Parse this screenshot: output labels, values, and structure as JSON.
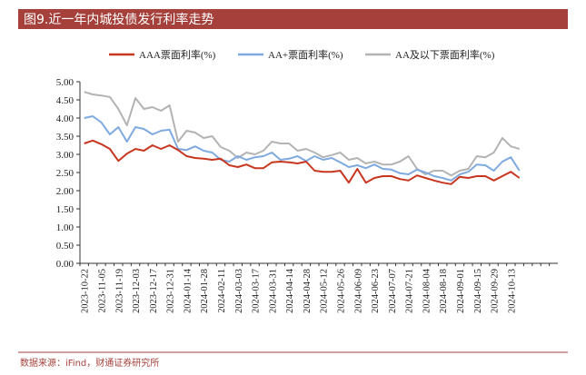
{
  "chart_data": {
    "type": "line",
    "title": "图9.近一年内城投债发行利率走势",
    "source": "数据来源：iFind，财通证券研究所",
    "categories": [
      "2023-10-22",
      null,
      "2023-11-05",
      null,
      "2023-11-19",
      null,
      "2023-12-03",
      null,
      "2023-12-17",
      null,
      "2023-12-31",
      null,
      "2024-01-14",
      null,
      "2024-01-28",
      null,
      "2024-02-11",
      null,
      "2024-03-03",
      null,
      "2024-03-17",
      null,
      "2024-03-31",
      null,
      "2024-04-14",
      null,
      "2024-04-28",
      null,
      "2024-05-12",
      null,
      "2024-05-26",
      null,
      "2024-06-09",
      null,
      "2024-06-23",
      null,
      "2024-07-07",
      null,
      "2024-07-21",
      null,
      "2024-08-04",
      null,
      "2024-08-18",
      null,
      "2024-09-01",
      null,
      "2024-09-15",
      null,
      "2024-09-29",
      null,
      "2024-10-13",
      null,
      null,
      null,
      null,
      null
    ],
    "series": [
      {
        "name": "AAA票面利率(%)",
        "color": "#c8361f",
        "values": [
          3.3,
          3.38,
          3.28,
          3.15,
          2.82,
          3.02,
          3.15,
          3.1,
          3.25,
          3.15,
          3.25,
          3.12,
          2.95,
          2.9,
          2.88,
          2.85,
          2.88,
          2.7,
          2.65,
          2.72,
          2.62,
          2.62,
          2.78,
          2.8,
          2.78,
          2.75,
          2.8,
          2.55,
          2.52,
          2.52,
          2.55,
          2.22,
          2.6,
          2.22,
          2.35,
          2.4,
          2.4,
          2.32,
          2.28,
          2.42,
          2.35,
          2.28,
          2.22,
          2.18,
          2.38,
          2.35,
          2.4,
          2.4,
          2.28,
          2.4,
          2.52,
          2.35,
          null,
          null,
          null,
          null
        ]
      },
      {
        "name": "AA+票面利率(%)",
        "color": "#7eaadf",
        "values": [
          4.0,
          4.05,
          3.88,
          3.55,
          3.75,
          3.35,
          3.75,
          3.7,
          3.55,
          3.65,
          3.68,
          3.15,
          3.12,
          3.22,
          3.1,
          3.05,
          2.85,
          2.8,
          2.95,
          2.85,
          2.92,
          2.95,
          3.05,
          2.85,
          2.88,
          2.95,
          2.82,
          2.95,
          2.85,
          2.9,
          2.78,
          2.65,
          2.7,
          2.62,
          2.72,
          2.6,
          2.58,
          2.48,
          2.45,
          2.58,
          2.5,
          2.4,
          2.35,
          2.28,
          2.45,
          2.52,
          2.72,
          2.7,
          2.55,
          2.8,
          2.92,
          2.55,
          null,
          null,
          null,
          null
        ]
      },
      {
        "name": "AA及以下票面利率(%)",
        "color": "#b3b3b3",
        "values": [
          4.72,
          4.65,
          4.62,
          4.58,
          4.25,
          3.8,
          4.55,
          4.25,
          4.3,
          4.2,
          4.35,
          3.35,
          3.65,
          3.6,
          3.45,
          3.5,
          3.2,
          3.1,
          2.9,
          3.05,
          3.0,
          3.1,
          3.35,
          3.3,
          3.3,
          3.1,
          3.15,
          3.05,
          2.92,
          2.98,
          3.05,
          2.85,
          2.9,
          2.75,
          2.8,
          2.72,
          2.72,
          2.8,
          2.95,
          2.6,
          2.45,
          2.55,
          2.55,
          2.42,
          2.55,
          2.6,
          2.95,
          2.92,
          3.05,
          3.45,
          3.22,
          3.15,
          null,
          null,
          null,
          null
        ]
      }
    ],
    "ylim": [
      0,
      5
    ],
    "yticks": [
      {
        "value": 0,
        "label": "0.00"
      },
      {
        "value": 0.5,
        "label": "0.50"
      },
      {
        "value": 1,
        "label": "1.00"
      },
      {
        "value": 1.5,
        "label": "1.50"
      },
      {
        "value": 2,
        "label": "2.00"
      },
      {
        "value": 2.5,
        "label": "2.50"
      },
      {
        "value": 3,
        "label": "3.00"
      },
      {
        "value": 3.5,
        "label": "3.50"
      },
      {
        "value": 4,
        "label": "4.00"
      },
      {
        "value": 4.5,
        "label": "4.50"
      },
      {
        "value": 5,
        "label": "5.00"
      }
    ],
    "grid": false,
    "legend": "top"
  }
}
